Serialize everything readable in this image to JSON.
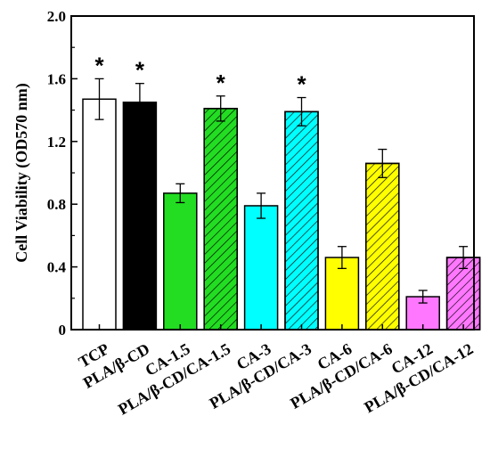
{
  "chart_data": {
    "type": "bar",
    "title": "",
    "xlabel": "",
    "ylabel": "Cell Viability (OD570 nm)",
    "ylim": [
      0,
      2.0
    ],
    "yticks": [
      0,
      0.4,
      0.8,
      1.2,
      1.6,
      2.0
    ],
    "ytick_labels": [
      "0",
      "0.4",
      "0.8",
      "1.2",
      "1.6",
      "2.0"
    ],
    "grid": false,
    "categories": [
      "TCP",
      "PLA/β-CD",
      "CA-1.5",
      "PLA/β-CD/CA-1.5",
      "CA-3",
      "PLA/β-CD/CA-3",
      "CA-6",
      "PLA/β-CD/CA-6",
      "CA-12",
      "PLA/β-CD/CA-12"
    ],
    "values": [
      1.47,
      1.45,
      0.87,
      1.41,
      0.79,
      1.39,
      0.46,
      1.06,
      0.21,
      0.46
    ],
    "errors": [
      0.13,
      0.12,
      0.06,
      0.08,
      0.08,
      0.09,
      0.07,
      0.09,
      0.04,
      0.07
    ],
    "colors": [
      "#ffffff",
      "#000000",
      "#22dd22",
      "#22dd22",
      "#00ffff",
      "#00ffff",
      "#ffff00",
      "#ffff00",
      "#ff77ff",
      "#ff77ff"
    ],
    "hatched": [
      false,
      false,
      false,
      true,
      false,
      true,
      false,
      true,
      false,
      true
    ],
    "significance": [
      "*",
      "*",
      "",
      "*",
      "",
      "*",
      "",
      "",
      "",
      ""
    ]
  }
}
